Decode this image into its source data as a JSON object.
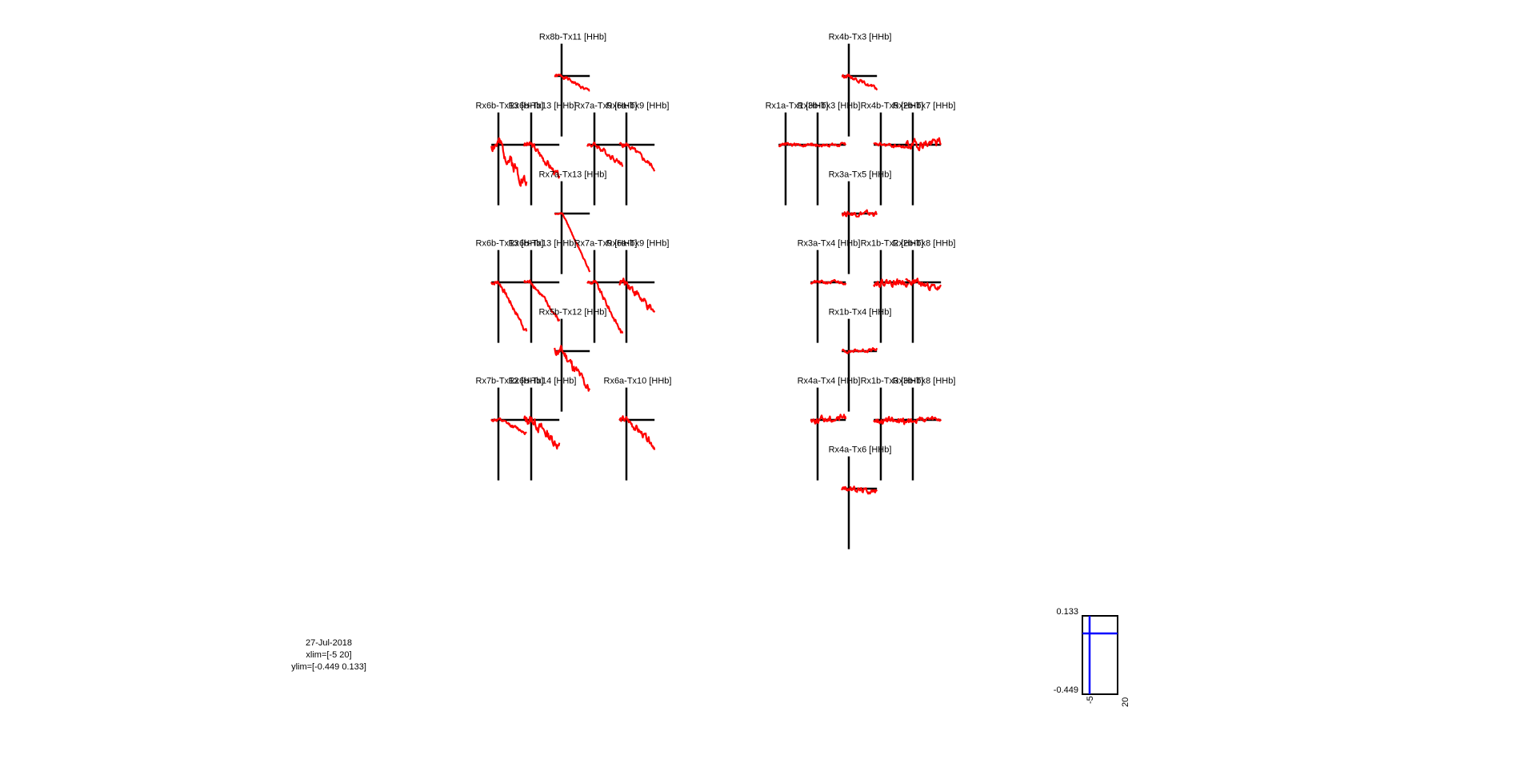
{
  "figure": {
    "info": {
      "date": "27-Jul-2018",
      "xlim_text": "xlim=[-5 20]",
      "ylim_text": "ylim=[-0.449 0.133]"
    },
    "scale_box": {
      "y_top_label": "0.133",
      "y_bottom_label": "-0.449",
      "x_left_label": "-5",
      "x_right_label": "20"
    }
  },
  "chart_data": {
    "type": "line",
    "xlim": [
      -5,
      20
    ],
    "ylim": [
      -0.449,
      0.133
    ],
    "colors": {
      "trace": "#ff0000",
      "axes": "#000000",
      "scale_axes": "#0000ff"
    },
    "panels": [
      {
        "title": "Rx8b-Tx11 [HHb]",
        "trend": -0.12,
        "noise": 0.02,
        "seed": 1
      },
      {
        "title": "Rx6b-Tx13 [HHb]",
        "trend": -0.3,
        "noise": 0.08,
        "seed": 2
      },
      {
        "title": "Rx6b-Tx13 [HHb]",
        "trend": -0.25,
        "noise": 0.04,
        "seed": 3
      },
      {
        "title": "Rx7a-Tx9 [HHb]",
        "trend": -0.15,
        "noise": 0.03,
        "seed": 4
      },
      {
        "title": "Rx6a-Tx9 [HHb]",
        "trend": -0.18,
        "noise": 0.03,
        "seed": 5
      },
      {
        "title": "Rx7a-Tx13 [HHb]",
        "trend": -0.44,
        "noise": 0.01,
        "seed": 6
      },
      {
        "title": "Rx6b-Tx13 [HHb]",
        "trend": -0.38,
        "noise": 0.03,
        "seed": 7
      },
      {
        "title": "Rx6b-Tx13 [HHb]",
        "trend": -0.3,
        "noise": 0.03,
        "seed": 8
      },
      {
        "title": "Rx7a-Tx9 [HHb]",
        "trend": -0.4,
        "noise": 0.03,
        "seed": 9
      },
      {
        "title": "Rx6a-Tx9 [HHb]",
        "trend": -0.25,
        "noise": 0.05,
        "seed": 10
      },
      {
        "title": "Rx5b-Tx12 [HHb]",
        "trend": -0.3,
        "noise": 0.06,
        "seed": 11
      },
      {
        "title": "Rx7b-Tx12 [HHb]",
        "trend": -0.1,
        "noise": 0.02,
        "seed": 12
      },
      {
        "title": "Rx6b-Tx14 [HHb]",
        "trend": -0.2,
        "noise": 0.06,
        "seed": 13
      },
      {
        "title": "Rx6a-Tx10 [HHb]",
        "trend": -0.2,
        "noise": 0.04,
        "seed": 14
      },
      {
        "title": "Rx4b-Tx3 [HHb]",
        "trend": -0.1,
        "noise": 0.02,
        "seed": 15
      },
      {
        "title": "Rx1a-Tx1 [HHb]",
        "trend": 0.0,
        "noise": 0.02,
        "seed": 16
      },
      {
        "title": "Rx3b-Tx3 [HHb]",
        "trend": 0.0,
        "noise": 0.02,
        "seed": 17
      },
      {
        "title": "Rx4b-Tx5 [HHb]",
        "trend": -0.02,
        "noise": 0.02,
        "seed": 18
      },
      {
        "title": "Rx2b-Tx7 [HHb]",
        "trend": 0.02,
        "noise": 0.05,
        "seed": 19
      },
      {
        "title": "Rx3a-Tx5 [HHb]",
        "trend": 0.0,
        "noise": 0.03,
        "seed": 20
      },
      {
        "title": "Rx3a-Tx4 [HHb]",
        "trend": 0.0,
        "noise": 0.02,
        "seed": 21
      },
      {
        "title": "Rx1b-Tx2 [HHb]",
        "trend": 0.0,
        "noise": 0.04,
        "seed": 22
      },
      {
        "title": "Rx2b-Tx8 [HHb]",
        "trend": -0.05,
        "noise": 0.04,
        "seed": 23
      },
      {
        "title": "Rx1b-Tx4 [HHb]",
        "trend": 0.01,
        "noise": 0.02,
        "seed": 24
      },
      {
        "title": "Rx4a-Tx4 [HHb]",
        "trend": 0.02,
        "noise": 0.04,
        "seed": 25
      },
      {
        "title": "Rx1b-Tx3 [HHb]",
        "trend": -0.02,
        "noise": 0.04,
        "seed": 26
      },
      {
        "title": "Rx3b-Tx8 [HHb]",
        "trend": 0.0,
        "noise": 0.03,
        "seed": 27
      },
      {
        "title": "Rx4a-Tx6 [HHb]",
        "trend": -0.02,
        "noise": 0.03,
        "seed": 28
      }
    ]
  }
}
